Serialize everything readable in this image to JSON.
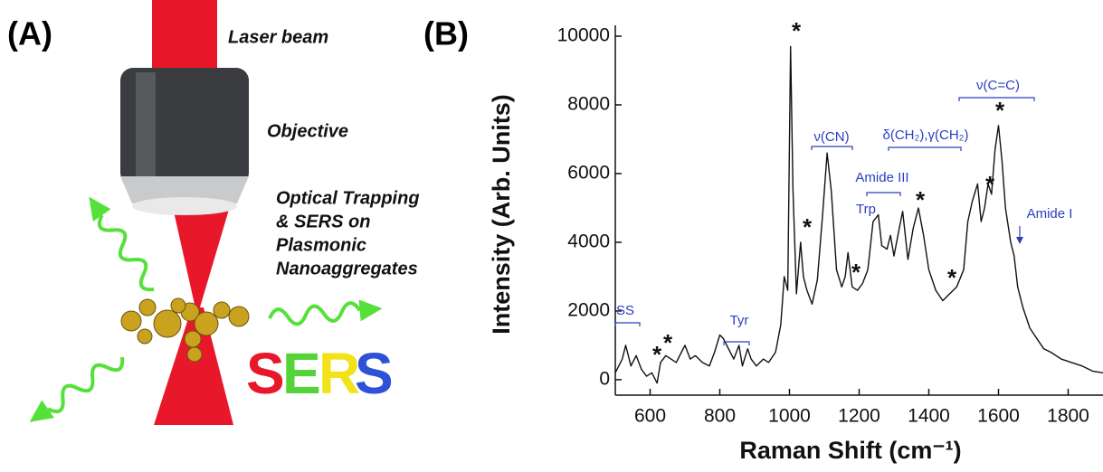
{
  "panel_a": {
    "label": "(A)",
    "texts": [
      "Laser beam",
      "Objective",
      "Optical Trapping",
      "& SERS on",
      "Plasmonic",
      "Nanoaggregates"
    ],
    "sers_letters": [
      "S",
      "E",
      "R",
      "S"
    ]
  },
  "chart_data": {
    "type": "line",
    "panel_label": "(B)",
    "xlabel": "Raman Shift (cm⁻¹)",
    "ylabel": "Intensity (Arb. Units)",
    "xlim": [
      500,
      1900
    ],
    "ylim": [
      -450,
      10300
    ],
    "xticks": [
      600,
      800,
      1000,
      1200,
      1400,
      1600,
      1800
    ],
    "yticks": [
      0,
      2000,
      4000,
      6000,
      8000,
      10000
    ],
    "color": "#111111",
    "x": [
      500,
      520,
      530,
      545,
      560,
      575,
      590,
      605,
      620,
      630,
      645,
      660,
      675,
      690,
      700,
      715,
      730,
      750,
      770,
      785,
      800,
      810,
      825,
      840,
      855,
      865,
      880,
      890,
      905,
      925,
      940,
      960,
      975,
      985,
      995,
      1003,
      1010,
      1020,
      1032,
      1040,
      1050,
      1065,
      1080,
      1095,
      1108,
      1120,
      1135,
      1150,
      1160,
      1168,
      1180,
      1195,
      1210,
      1225,
      1240,
      1255,
      1265,
      1280,
      1290,
      1300,
      1315,
      1325,
      1340,
      1355,
      1370,
      1385,
      1400,
      1420,
      1440,
      1460,
      1480,
      1500,
      1512,
      1525,
      1540,
      1550,
      1560,
      1570,
      1580,
      1590,
      1600,
      1610,
      1620,
      1635,
      1645,
      1655,
      1670,
      1690,
      1710,
      1730,
      1750,
      1780,
      1810,
      1840,
      1870,
      1900
    ],
    "values": [
      200,
      600,
      1000,
      400,
      700,
      300,
      100,
      200,
      -100,
      500,
      700,
      600,
      500,
      800,
      1000,
      600,
      700,
      500,
      400,
      800,
      1300,
      1200,
      900,
      600,
      1000,
      400,
      900,
      600,
      400,
      600,
      500,
      800,
      1600,
      3000,
      2600,
      9700,
      5500,
      2500,
      4000,
      3000,
      2600,
      2200,
      2900,
      4800,
      6600,
      5500,
      3200,
      2700,
      3000,
      3700,
      2700,
      2600,
      2800,
      3200,
      4600,
      4800,
      3900,
      3800,
      4200,
      3600,
      4400,
      4900,
      3500,
      4400,
      5000,
      4200,
      3200,
      2600,
      2300,
      2500,
      2700,
      3200,
      4600,
      5200,
      5700,
      4600,
      5000,
      5700,
      5400,
      6700,
      7400,
      6400,
      5000,
      4000,
      3600,
      2700,
      2100,
      1500,
      1200,
      900,
      800,
      600,
      500,
      400,
      250,
      200
    ],
    "annotations": [
      "SS",
      "Tyr",
      "ν(CN)",
      "Amide III",
      "Trp",
      "δ(CH₂),γ(CH₂)",
      "ν(C=C)",
      "Amide I",
      "*",
      "*",
      "*",
      "*",
      "*",
      "*",
      "*",
      "*",
      "*"
    ]
  }
}
